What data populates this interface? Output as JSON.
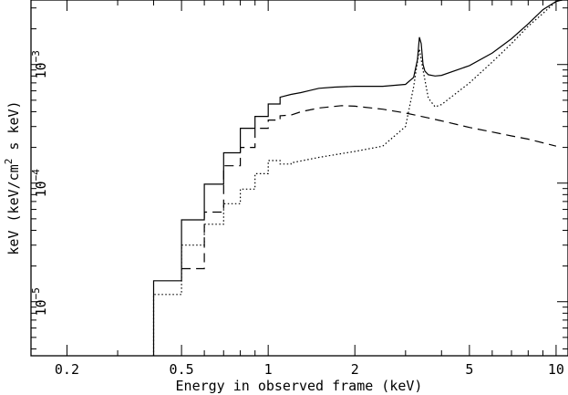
{
  "chart_data": {
    "type": "line",
    "title": "",
    "xlabel": "Energy in observed frame (keV)",
    "ylabel_parts": [
      "keV (keV/cm",
      "2",
      " s keV)"
    ],
    "x_scale": "log",
    "y_scale": "log",
    "xlim": [
      0.15,
      11
    ],
    "ylim": [
      3.5e-06,
      0.0035
    ],
    "x_ticks": [
      {
        "value": 0.2,
        "label": "0.2"
      },
      {
        "value": 0.5,
        "label": "0.5"
      },
      {
        "value": 1,
        "label": "1"
      },
      {
        "value": 2,
        "label": "2"
      },
      {
        "value": 5,
        "label": "5"
      },
      {
        "value": 10,
        "label": "10"
      }
    ],
    "y_ticks": [
      {
        "value": 1e-05,
        "base": "10",
        "exp": "−5"
      },
      {
        "value": 0.0001,
        "base": "10",
        "exp": "−4"
      },
      {
        "value": 0.001,
        "base": "10",
        "exp": "−3"
      }
    ],
    "grid": false,
    "legend": "none",
    "series": [
      {
        "style": "solid",
        "x": [
          0.4,
          0.4,
          0.5,
          0.5,
          0.6,
          0.6,
          0.7,
          0.7,
          0.8,
          0.8,
          0.9,
          0.9,
          1.0,
          1.0,
          1.1,
          1.1,
          1.2,
          1.3,
          1.4,
          1.5,
          1.7,
          2.0,
          2.5,
          3.0,
          3.2,
          3.3,
          3.35,
          3.4,
          3.45,
          3.5,
          3.6,
          3.8,
          4.0,
          5.0,
          6.0,
          7.0,
          8.0,
          9.0,
          10.0,
          10.5
        ],
        "y": [
          3.5e-06,
          1.5e-05,
          1.5e-05,
          4.9e-05,
          4.9e-05,
          9.8e-05,
          9.8e-05,
          0.00018,
          0.00018,
          0.00029,
          0.00029,
          0.000365,
          0.000365,
          0.000465,
          0.000465,
          0.00053,
          0.00056,
          0.00058,
          0.000605,
          0.00063,
          0.000645,
          0.000655,
          0.000655,
          0.00068,
          0.00078,
          0.0011,
          0.0017,
          0.0015,
          0.001,
          0.00088,
          0.00082,
          0.0008,
          0.00081,
          0.00098,
          0.00125,
          0.00165,
          0.0022,
          0.0029,
          0.0034,
          0.0035
        ]
      },
      {
        "style": "dashed",
        "x": [
          0.5,
          0.5,
          0.6,
          0.6,
          0.7,
          0.7,
          0.8,
          0.8,
          0.9,
          0.9,
          1.0,
          1.0,
          1.1,
          1.1,
          1.2,
          1.3,
          1.5,
          1.8,
          2.0,
          2.5,
          3.0,
          3.5,
          4.0,
          5.0,
          6.0,
          7.0,
          8.0,
          10.0
        ],
        "y": [
          1.9e-05,
          1.9e-05,
          1.9e-05,
          5.7e-05,
          5.7e-05,
          0.00014,
          0.00014,
          0.0002,
          0.0002,
          0.00029,
          0.00029,
          0.00034,
          0.00034,
          0.00037,
          0.000375,
          0.0004,
          0.00043,
          0.00045,
          0.000445,
          0.00042,
          0.00039,
          0.00036,
          0.000335,
          0.000295,
          0.00027,
          0.00025,
          0.000235,
          0.000205
        ]
      },
      {
        "style": "dotted",
        "x": [
          0.4,
          0.4,
          0.5,
          0.5,
          0.6,
          0.6,
          0.7,
          0.7,
          0.8,
          0.8,
          0.9,
          0.9,
          1.0,
          1.0,
          1.1,
          1.1,
          1.2,
          1.2,
          1.5,
          2.0,
          2.5,
          3.0,
          3.2,
          3.35,
          3.45,
          3.6,
          3.8,
          4.0,
          5.0,
          6.0,
          7.0,
          8.0,
          9.0,
          10.0,
          10.5
        ],
        "y": [
          3.5e-06,
          1.15e-05,
          1.15e-05,
          3e-05,
          3e-05,
          4.5e-05,
          4.5e-05,
          6.7e-05,
          6.7e-05,
          8.9e-05,
          8.9e-05,
          0.00012,
          0.00012,
          0.000155,
          0.000155,
          0.000145,
          0.000145,
          0.000148,
          0.000165,
          0.000185,
          0.000205,
          0.0003,
          0.00065,
          0.00135,
          0.0009,
          0.00052,
          0.00044,
          0.00046,
          0.0007,
          0.00105,
          0.0015,
          0.0021,
          0.0027,
          0.0034,
          0.0035
        ]
      }
    ]
  }
}
